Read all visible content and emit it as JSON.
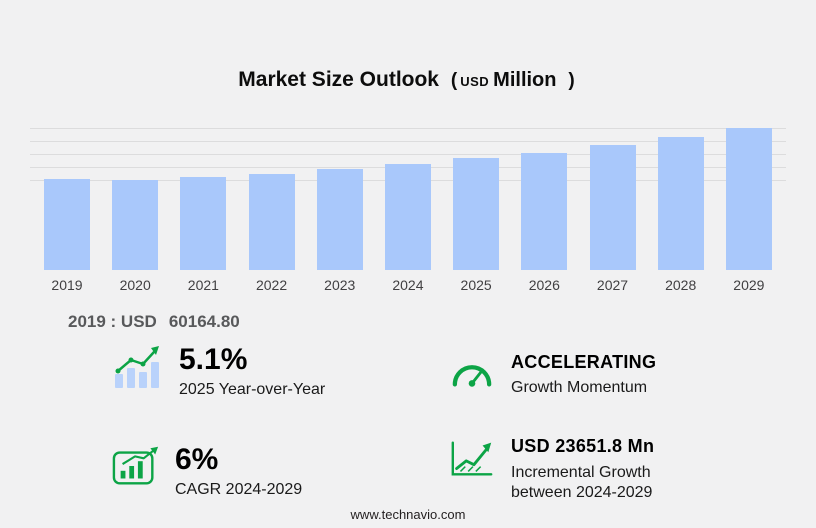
{
  "title": {
    "main": "Market Size Outlook",
    "open_paren": "(",
    "currency": "USD",
    "unit": "Million",
    "close_paren": ")"
  },
  "chart_data": {
    "type": "bar",
    "title": "Market Size Outlook (USD Million)",
    "unit": "USD Million",
    "categories": [
      "2019",
      "2020",
      "2021",
      "2022",
      "2023",
      "2024",
      "2025",
      "2026",
      "2027",
      "2028",
      "2029"
    ],
    "values": [
      60164.8,
      59600,
      61300,
      63600,
      66300,
      69930,
      73500,
      77300,
      82100,
      87600,
      93590
    ],
    "labeled_points": {
      "2019": 60164.8
    },
    "xlabel": "",
    "ylabel": "",
    "grid": "horizontal",
    "legend": "none"
  },
  "annotation": {
    "label": "2019 : USD",
    "value": "60164.80"
  },
  "stats": {
    "yoy": {
      "value": "5.1%",
      "label": "2025 Year-over-Year"
    },
    "momentum": {
      "value": "ACCELERATING",
      "label": "Growth Momentum"
    },
    "cagr": {
      "value": "6%",
      "label": "CAGR 2024-2029"
    },
    "incremental": {
      "value": "USD 23651.8 Mn",
      "label_line1": "Incremental Growth",
      "label_line2": "between 2024-2029"
    }
  },
  "footer": {
    "url": "www.technavio.com"
  },
  "colors": {
    "background": "#f1f1f2",
    "bar_fill": "#a9c8fb",
    "icon_bar_fill": "#b9d2fb",
    "accent_green": "#0ca446",
    "grid_line": "#dcdcdd",
    "annotation_gray": "#58595b"
  }
}
